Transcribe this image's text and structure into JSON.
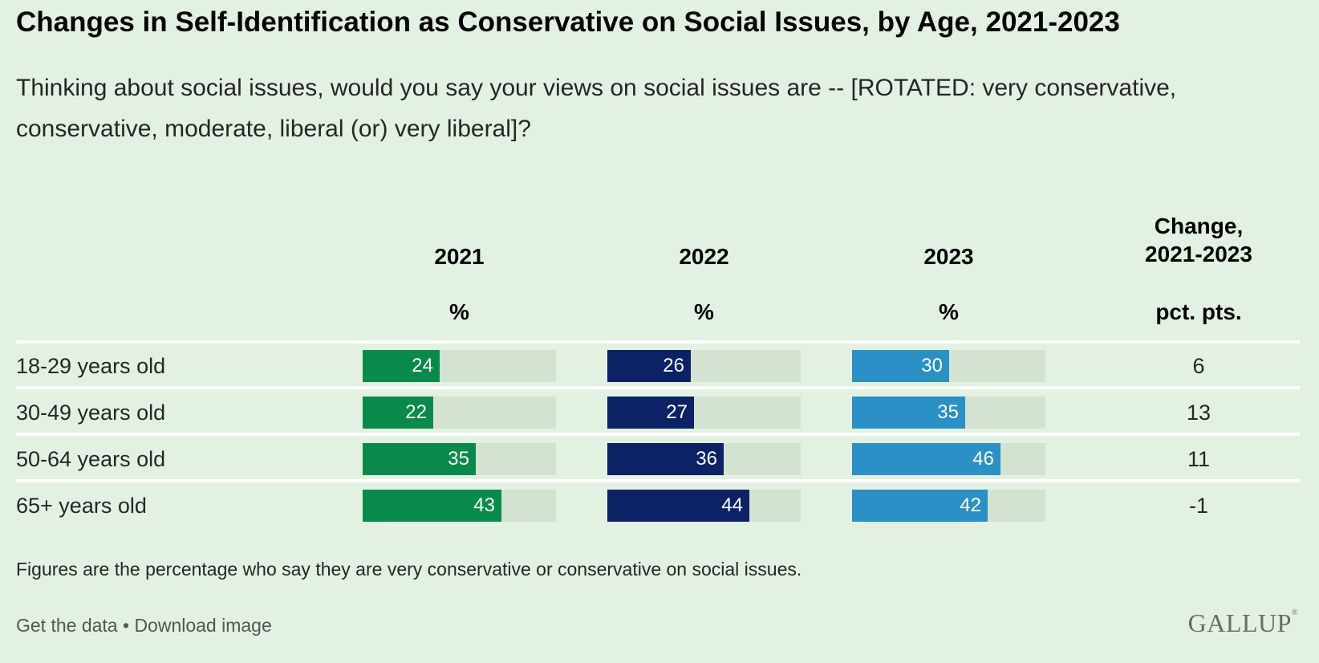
{
  "title": "Changes in Self-Identification as Conservative on Social Issues, by Age, 2021-2023",
  "subtitle": "Thinking about social issues, would you say your views on social issues are -- [ROTATED: very conservative, conservative, moderate, liberal (or) very liberal]?",
  "note": "Figures are the percentage who say they are very conservative or conservative on social issues.",
  "footer": {
    "get_data": "Get the data",
    "separator": " • ",
    "download": "Download image",
    "brand": "GALLUP"
  },
  "colors": {
    "2021": "#0a8a4a",
    "2022": "#0c2264",
    "2023": "#2a90c5",
    "track": "#d3e2d1"
  },
  "chart_data": {
    "type": "bar",
    "categories": [
      "18-29 years old",
      "30-49 years old",
      "50-64 years old",
      "65+ years old"
    ],
    "series": [
      {
        "name": "2021",
        "unit": "%",
        "values": [
          24,
          22,
          35,
          43
        ]
      },
      {
        "name": "2022",
        "unit": "%",
        "values": [
          26,
          27,
          36,
          44
        ]
      },
      {
        "name": "2023",
        "unit": "%",
        "values": [
          30,
          35,
          46,
          42
        ]
      }
    ],
    "change": {
      "label_line1": "Change,",
      "label_line2": "2021-2023",
      "unit": "pct. pts.",
      "values": [
        "6",
        "13",
        "11",
        "-1"
      ]
    },
    "xlim": [
      0,
      60
    ],
    "title": "Changes in Self-Identification as Conservative on Social Issues, by Age, 2021-2023"
  }
}
